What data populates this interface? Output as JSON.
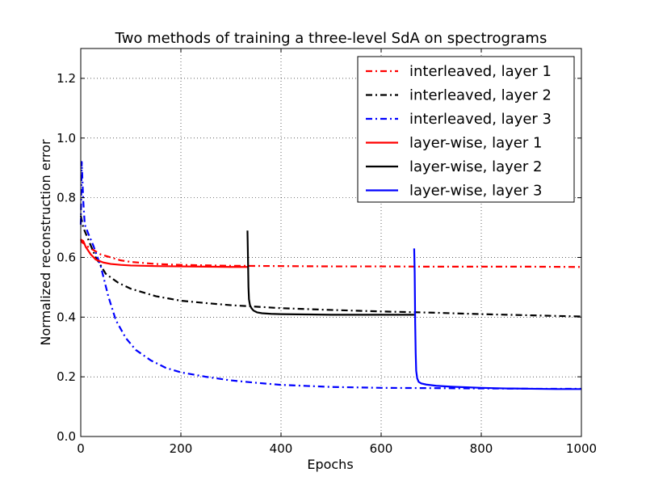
{
  "chart_data": {
    "type": "line",
    "title": "Two methods of training a three-level SdA on spectrograms",
    "xlabel": "Epochs",
    "ylabel": "Normalized reconstruction error",
    "xlim": [
      0,
      1000
    ],
    "ylim": [
      0,
      1.3
    ],
    "xticks": [
      0,
      200,
      400,
      600,
      800,
      1000
    ],
    "yticks": [
      0.0,
      0.2,
      0.4,
      0.6,
      0.8,
      1.0,
      1.2
    ],
    "xtick_labels": [
      "0",
      "200",
      "400",
      "600",
      "800",
      "1000"
    ],
    "ytick_labels": [
      "0.0",
      "0.2",
      "0.4",
      "0.6",
      "0.8",
      "1.0",
      "1.2"
    ],
    "grid": true,
    "legend_position": "top-right",
    "series": [
      {
        "name": "interleaved, layer 1",
        "color": "#ff0000",
        "style": "dashdot",
        "x": [
          0,
          3,
          8,
          15,
          25,
          40,
          60,
          80,
          100,
          150,
          200,
          300,
          400,
          500,
          600,
          700,
          800,
          900,
          1000
        ],
        "y": [
          0.66,
          0.65,
          0.645,
          0.635,
          0.625,
          0.61,
          0.6,
          0.59,
          0.585,
          0.578,
          0.575,
          0.572,
          0.571,
          0.57,
          0.57,
          0.569,
          0.569,
          0.569,
          0.568
        ]
      },
      {
        "name": "interleaved, layer 2",
        "color": "#000000",
        "style": "dashdot",
        "x": [
          0,
          5,
          15,
          30,
          50,
          75,
          100,
          150,
          200,
          250,
          300,
          350,
          400,
          500,
          600,
          700,
          800,
          900,
          1000
        ],
        "y": [
          0.74,
          0.7,
          0.66,
          0.6,
          0.545,
          0.515,
          0.495,
          0.47,
          0.455,
          0.447,
          0.44,
          0.435,
          0.43,
          0.424,
          0.419,
          0.415,
          0.41,
          0.406,
          0.402
        ]
      },
      {
        "name": "interleaved, layer 3",
        "color": "#0000ff",
        "style": "dashdot",
        "x": [
          0,
          2,
          5,
          8,
          15,
          25,
          40,
          55,
          70,
          90,
          110,
          140,
          170,
          200,
          250,
          300,
          350,
          400,
          500,
          600,
          700,
          800,
          900,
          1000
        ],
        "y": [
          0.71,
          0.92,
          0.79,
          0.71,
          0.68,
          0.64,
          0.57,
          0.47,
          0.39,
          0.33,
          0.29,
          0.255,
          0.23,
          0.215,
          0.2,
          0.188,
          0.18,
          0.173,
          0.166,
          0.163,
          0.162,
          0.161,
          0.16,
          0.16
        ]
      },
      {
        "name": "layer-wise, layer 1",
        "color": "#ff0000",
        "style": "solid",
        "x": [
          0,
          5,
          10,
          20,
          30,
          45,
          60,
          80,
          100,
          150,
          200,
          250,
          300,
          333
        ],
        "y": [
          0.66,
          0.655,
          0.635,
          0.61,
          0.593,
          0.583,
          0.578,
          0.575,
          0.573,
          0.571,
          0.57,
          0.569,
          0.568,
          0.568
        ]
      },
      {
        "name": "layer-wise, layer 2",
        "color": "#000000",
        "style": "solid",
        "x": [
          333,
          334,
          335,
          336,
          338,
          341,
          345,
          352,
          362,
          380,
          400,
          450,
          500,
          550,
          600,
          650,
          666
        ],
        "y": [
          0.69,
          0.6,
          0.5,
          0.46,
          0.44,
          0.43,
          0.422,
          0.416,
          0.413,
          0.411,
          0.41,
          0.409,
          0.408,
          0.408,
          0.408,
          0.408,
          0.408
        ]
      },
      {
        "name": "layer-wise, layer 3",
        "color": "#0000ff",
        "style": "solid",
        "x": [
          666,
          667,
          668,
          669,
          670,
          672,
          675,
          680,
          690,
          710,
          740,
          800,
          850,
          900,
          950,
          1000
        ],
        "y": [
          0.63,
          0.55,
          0.38,
          0.28,
          0.22,
          0.195,
          0.183,
          0.178,
          0.174,
          0.17,
          0.167,
          0.163,
          0.161,
          0.16,
          0.159,
          0.159
        ]
      }
    ]
  }
}
